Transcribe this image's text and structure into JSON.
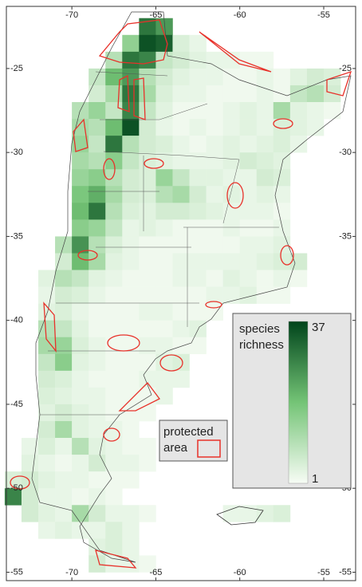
{
  "map": {
    "xlim": [
      -73.9,
      -53.1
    ],
    "ylim": [
      -55.5,
      -21.3
    ],
    "xticks": [
      -70,
      -65,
      -60,
      -55
    ],
    "yticks": [
      -25,
      -30,
      -35,
      -40,
      -45,
      -50,
      -55
    ],
    "legend": {
      "line1": "species",
      "line2": "richness",
      "max": 37,
      "min": 1,
      "colors": [
        "#f7fcf5",
        "#74c476",
        "#00441b"
      ]
    },
    "protected_legend": {
      "line1": "protected",
      "line2": "area",
      "color": "#e8312a"
    },
    "cells": [
      {
        "lat": -22,
        "lon": -66,
        "values": [
          30,
          25
        ]
      },
      {
        "lat": -23,
        "lon": -67,
        "values": [
          15,
          35,
          33,
          5,
          3
        ]
      },
      {
        "lat": -24,
        "lon": -68,
        "values": [
          10,
          30,
          28,
          8,
          6,
          4,
          3,
          3,
          2,
          2
        ]
      },
      {
        "lat": -25,
        "lon": -69,
        "values": [
          8,
          20,
          25,
          10,
          6,
          4,
          3,
          3,
          2,
          2,
          3,
          2,
          4,
          6,
          5
        ]
      },
      {
        "lat": -26,
        "lon": -69,
        "values": [
          6,
          12,
          30,
          12,
          5,
          3,
          3,
          2,
          2,
          2,
          3,
          2,
          8,
          10,
          6
        ]
      },
      {
        "lat": -27,
        "lon": -70,
        "values": [
          10,
          14,
          8,
          28,
          8,
          4,
          2,
          2,
          2,
          3,
          4,
          3,
          12,
          4,
          3,
          2
        ]
      },
      {
        "lat": -28,
        "lon": -70,
        "values": [
          12,
          10,
          20,
          35,
          6,
          3,
          2,
          3,
          2,
          3,
          4,
          3,
          5,
          4,
          3
        ]
      },
      {
        "lat": -29,
        "lon": -70,
        "values": [
          14,
          8,
          30,
          10,
          6,
          5,
          3,
          2,
          3,
          4,
          3,
          4,
          5,
          3
        ]
      },
      {
        "lat": -30,
        "lon": -70,
        "values": [
          12,
          10,
          16,
          8,
          5,
          4,
          3,
          3,
          3,
          4,
          6,
          5,
          4
        ]
      },
      {
        "lat": -31,
        "lon": -70,
        "values": [
          14,
          16,
          10,
          6,
          5,
          14,
          8,
          4,
          4,
          3,
          3,
          6,
          5
        ]
      },
      {
        "lat": -32,
        "lon": -70,
        "values": [
          18,
          22,
          12,
          6,
          5,
          10,
          12,
          6,
          3,
          4,
          3,
          4,
          3
        ]
      },
      {
        "lat": -33,
        "lon": -70,
        "values": [
          20,
          30,
          10,
          5,
          4,
          6,
          6,
          5,
          4,
          3,
          3,
          3,
          2
        ]
      },
      {
        "lat": -34,
        "lon": -70,
        "values": [
          16,
          14,
          8,
          3,
          4,
          3,
          2,
          2,
          2,
          3,
          2,
          2,
          3
        ]
      },
      {
        "lat": -35,
        "lon": -71,
        "values": [
          10,
          26,
          10,
          5,
          3,
          2,
          2,
          2,
          2,
          2,
          2,
          3,
          3,
          4
        ]
      },
      {
        "lat": -36,
        "lon": -71,
        "values": [
          6,
          20,
          12,
          4,
          3,
          2,
          2,
          3,
          3,
          3,
          3,
          3,
          4,
          5,
          6
        ]
      },
      {
        "lat": -37,
        "lon": -72,
        "values": [
          4,
          10,
          8,
          4,
          3,
          2,
          2,
          2,
          3,
          3,
          2,
          4,
          3,
          2,
          3,
          2
        ]
      },
      {
        "lat": -38,
        "lon": -72,
        "values": [
          3,
          6,
          5,
          3,
          2,
          2,
          2,
          2,
          2,
          2,
          3,
          3,
          4,
          2,
          2
        ]
      },
      {
        "lat": -39,
        "lon": -72,
        "values": [
          4,
          5,
          3,
          2,
          2,
          2,
          3,
          3,
          2,
          2,
          2
        ]
      },
      {
        "lat": -40,
        "lon": -72,
        "values": [
          10,
          8,
          4,
          2,
          2,
          2,
          2,
          2,
          3,
          4
        ]
      },
      {
        "lat": -41,
        "lon": -72,
        "values": [
          12,
          14,
          5,
          3,
          2,
          2,
          3,
          3,
          2,
          2
        ]
      },
      {
        "lat": -42,
        "lon": -72,
        "values": [
          8,
          16,
          4,
          3,
          2,
          2,
          2,
          4,
          5
        ]
      },
      {
        "lat": -43,
        "lon": -72,
        "values": [
          6,
          5,
          3,
          2,
          2,
          2,
          3,
          3,
          3
        ]
      },
      {
        "lat": -44,
        "lon": -72,
        "values": [
          5,
          4,
          3,
          3,
          2,
          2,
          2,
          3
        ]
      },
      {
        "lat": -45,
        "lon": -72,
        "values": [
          4,
          6,
          4,
          3,
          2,
          2,
          2
        ]
      },
      {
        "lat": -46,
        "lon": -72,
        "values": [
          6,
          12,
          4,
          3,
          3,
          2
        ]
      },
      {
        "lat": -47,
        "lon": -73,
        "values": [
          3,
          5,
          3,
          10,
          4,
          3,
          2,
          2
        ]
      },
      {
        "lat": -48,
        "lon": -73,
        "values": [
          4,
          3,
          2,
          3,
          6,
          3,
          3,
          2
        ]
      },
      {
        "lat": -49,
        "lon": -74,
        "values": [
          5,
          6,
          4,
          3,
          3,
          2,
          2,
          2
        ]
      },
      {
        "lat": -50,
        "lon": -74,
        "values": [
          28,
          6,
          3,
          3,
          2,
          3,
          2
        ]
      },
      {
        "lat": -51,
        "lon": -73,
        "values": [
          6,
          4,
          3,
          12,
          6,
          3,
          3,
          2
        ]
      },
      {
        "lat": -52,
        "lon": -72,
        "values": [
          3,
          4,
          3,
          3,
          5,
          3
        ]
      },
      {
        "lat": -51,
        "lon": -61,
        "values": [
          3,
          3,
          4,
          5
        ]
      },
      {
        "lat": -53,
        "lon": -69,
        "values": [
          4,
          5,
          3
        ]
      },
      {
        "lat": -54,
        "lon": -69,
        "values": [
          6,
          3,
          3,
          2
        ]
      }
    ]
  }
}
